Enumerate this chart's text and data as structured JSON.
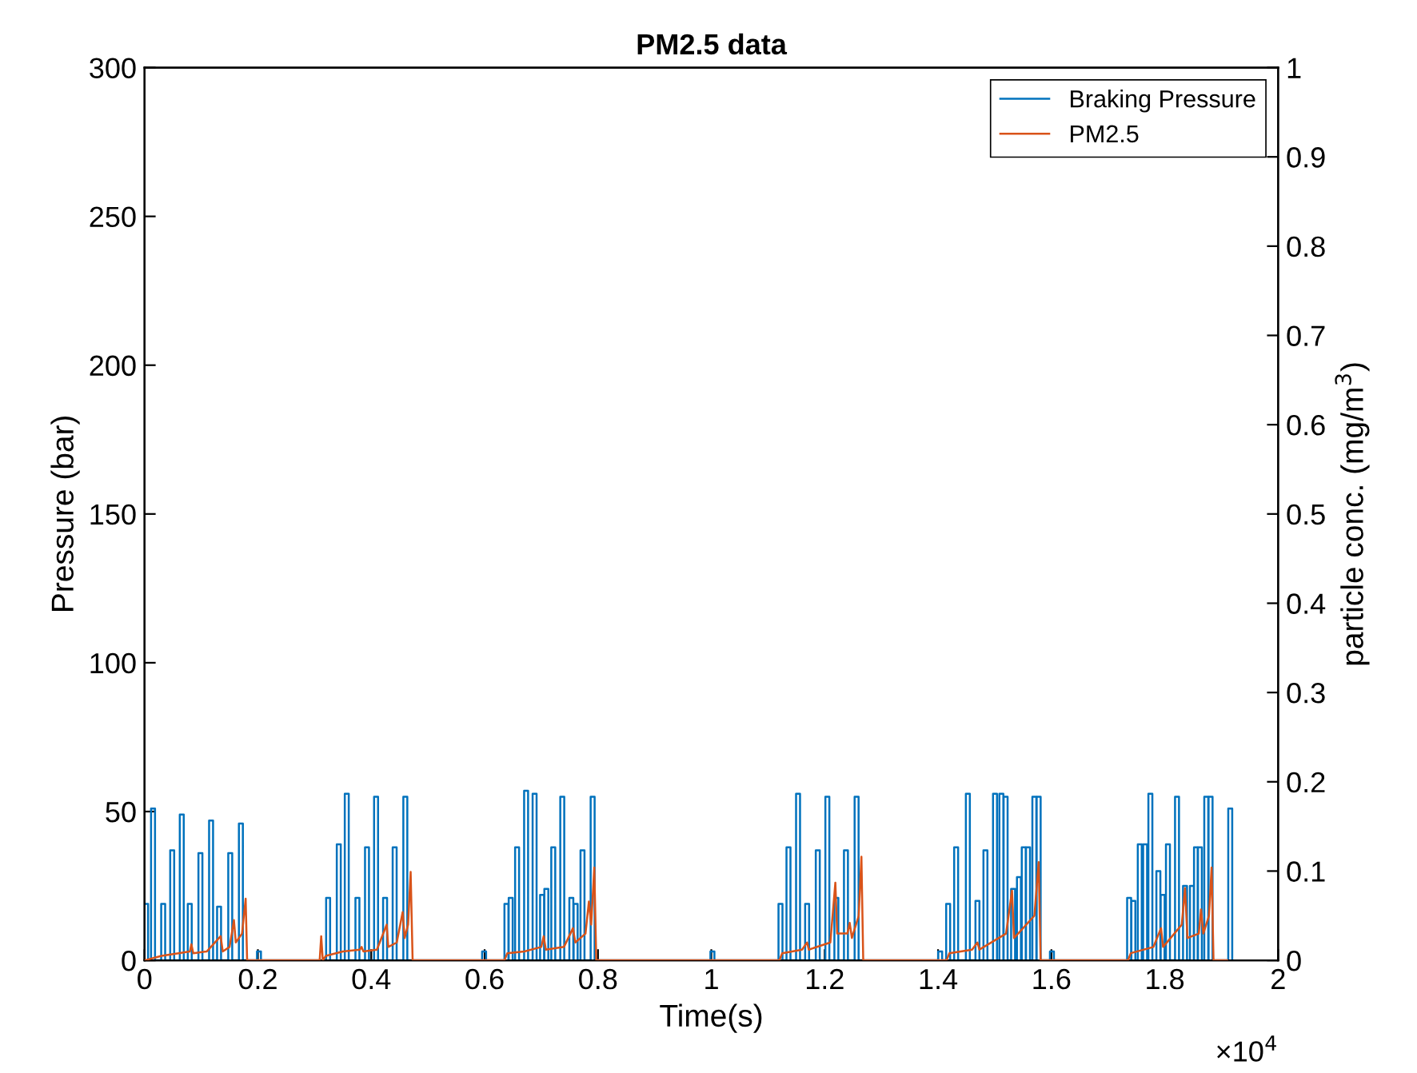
{
  "chart_data": {
    "type": "line",
    "title": "PM2.5 data",
    "xlabel": "Time(s)",
    "ylabel": "Pressure (bar)",
    "y2label": "particle conc. (mg/m$^{3}$)",
    "annotations": [
      "×10$^{4}$"
    ],
    "xlim": [
      0,
      2
    ],
    "xticks": [
      0,
      0.2,
      0.4,
      0.6,
      0.8,
      1,
      1.2,
      1.4,
      1.6,
      1.8,
      2
    ],
    "ylim": [
      0,
      300
    ],
    "yticks": [
      0,
      50,
      100,
      150,
      200,
      250,
      300
    ],
    "y2lim": [
      0,
      1
    ],
    "y2ticks": [
      0,
      0.1,
      0.2,
      0.3,
      0.4,
      0.5,
      0.6,
      0.7,
      0.8,
      0.9,
      1
    ],
    "grid": false,
    "legend": "top right",
    "marker": "none",
    "line_style": "solid",
    "series": [
      {
        "name": "Braking Pressure",
        "color": "#0072bd",
        "axis": "y",
        "x": [
          0,
          0.0063,
          0.0063,
          0.0115,
          0.0115,
          0.0185,
          0.0185,
          0.0294,
          0.0294,
          0.0364,
          0.0364,
          0.0453,
          0.0453,
          0.0523,
          0.0523,
          0.0622,
          0.0622,
          0.0692,
          0.0692,
          0.0763,
          0.0763,
          0.0833,
          0.0833,
          0.0951,
          0.0951,
          0.1021,
          0.1021,
          0.1139,
          0.1139,
          0.1209,
          0.1209,
          0.128,
          0.128,
          0.135,
          0.135,
          0.1477,
          0.1477,
          0.1547,
          0.1547,
          0.1665,
          0.1665,
          0.1735,
          0.1735,
          0.1984,
          0.1984,
          0.2054,
          0.2054,
          0.3204,
          0.3204,
          0.3274,
          0.3274,
          0.3392,
          0.3392,
          0.3462,
          0.3462,
          0.3533,
          0.3533,
          0.3603,
          0.3603,
          0.3721,
          0.3721,
          0.3791,
          0.3791,
          0.389,
          0.389,
          0.396,
          0.396,
          0.405,
          0.405,
          0.412,
          0.412,
          0.4209,
          0.4209,
          0.4279,
          0.4279,
          0.4378,
          0.4378,
          0.4448,
          0.4448,
          0.4566,
          0.4566,
          0.4636,
          0.4636,
          0.5956,
          0.5956,
          0.6026,
          0.6026,
          0.635,
          0.635,
          0.642,
          0.642,
          0.6425,
          0.6425,
          0.6495,
          0.6495,
          0.6538,
          0.6538,
          0.6608,
          0.6608,
          0.6697,
          0.6697,
          0.6767,
          0.6767,
          0.6847,
          0.6847,
          0.6917,
          0.6917,
          0.6979,
          0.6979,
          0.7049,
          0.7049,
          0.7054,
          0.7054,
          0.7124,
          0.7124,
          0.7176,
          0.7176,
          0.7246,
          0.7246,
          0.7335,
          0.7335,
          0.7405,
          0.7405,
          0.7495,
          0.7495,
          0.7565,
          0.7565,
          0.7571,
          0.7571,
          0.7641,
          0.7641,
          0.7692,
          0.7692,
          0.7762,
          0.7762,
          0.7871,
          0.7871,
          0.7941,
          0.7941,
          0.9984,
          0.9984,
          1.0054,
          1.0054,
          1.1185,
          1.1185,
          1.1255,
          1.1255,
          1.1326,
          1.1326,
          1.1396,
          1.1396,
          1.1495,
          1.1495,
          1.1565,
          1.1565,
          1.1655,
          1.1655,
          1.1725,
          1.1725,
          1.1843,
          1.1843,
          1.1913,
          1.1913,
          1.2012,
          1.2012,
          1.2082,
          1.2082,
          1.2171,
          1.2171,
          1.2241,
          1.2241,
          1.234,
          1.234,
          1.241,
          1.241,
          1.2528,
          1.2528,
          1.2598,
          1.2598,
          1.4002,
          1.4002,
          1.4072,
          1.4072,
          1.4143,
          1.4143,
          1.4213,
          1.4213,
          1.4284,
          1.4284,
          1.4354,
          1.4354,
          1.4491,
          1.4491,
          1.4561,
          1.4561,
          1.466,
          1.466,
          1.473,
          1.473,
          1.4801,
          1.4801,
          1.4871,
          1.4871,
          1.497,
          1.497,
          1.504,
          1.504,
          1.5082,
          1.5082,
          1.5152,
          1.5152,
          1.5157,
          1.5157,
          1.5227,
          1.5227,
          1.5289,
          1.5289,
          1.5359,
          1.5359,
          1.5392,
          1.5392,
          1.5462,
          1.5462,
          1.5477,
          1.5477,
          1.5547,
          1.5547,
          1.5552,
          1.5552,
          1.5622,
          1.5622,
          1.5664,
          1.5664,
          1.5734,
          1.5734,
          1.574,
          1.574,
          1.581,
          1.581,
          1.5974,
          1.5974,
          1.6044,
          1.6044,
          1.7336,
          1.7336,
          1.7406,
          1.7406,
          1.7411,
          1.7411,
          1.7481,
          1.7481,
          1.7524,
          1.7524,
          1.7594,
          1.7594,
          1.7618,
          1.7618,
          1.7688,
          1.7688,
          1.7711,
          1.7711,
          1.7781,
          1.7781,
          1.7852,
          1.7852,
          1.7922,
          1.7922,
          1.7928,
          1.7928,
          1.7998,
          1.7998,
          1.8021,
          1.8021,
          1.8091,
          1.8091,
          1.8181,
          1.8181,
          1.8251,
          1.8251,
          1.8322,
          1.8322,
          1.8392,
          1.8392,
          1.8444,
          1.8444,
          1.8512,
          1.8512,
          1.8516,
          1.8516,
          1.858,
          1.858,
          1.8586,
          1.8586,
          1.8654,
          1.8654,
          1.8697,
          1.8697,
          1.8767,
          1.8767,
          1.8773,
          1.8773,
          1.8843,
          1.8843,
          1.912,
          1.912,
          1.919,
          1.919
        ],
        "values": [
          19,
          19,
          0,
          0,
          51,
          51,
          0,
          0,
          19,
          19,
          0,
          0,
          37,
          37,
          0,
          0,
          49,
          49,
          0,
          0,
          19,
          19,
          0,
          0,
          36,
          36,
          0,
          0,
          47,
          47,
          0,
          0,
          18,
          18,
          0,
          0,
          36,
          36,
          0,
          0,
          46,
          46,
          0,
          0,
          3,
          3,
          0,
          0,
          21,
          21,
          0,
          0,
          39,
          39,
          0,
          0,
          56,
          56,
          0,
          0,
          21,
          21,
          0,
          0,
          38,
          38,
          0,
          0,
          55,
          55,
          0,
          0,
          21,
          21,
          0,
          0,
          38,
          38,
          0,
          0,
          55,
          55,
          0,
          0,
          3,
          3,
          0,
          0,
          19,
          19,
          0,
          0,
          21,
          21,
          0,
          0,
          38,
          38,
          0,
          0,
          57,
          57,
          0,
          0,
          56,
          56,
          0,
          0,
          22,
          22,
          0,
          0,
          24,
          24,
          0,
          0,
          38,
          38,
          0,
          0,
          55,
          55,
          0,
          0,
          21,
          21,
          0,
          0,
          19,
          19,
          0,
          0,
          37,
          37,
          0,
          0,
          55,
          55,
          0,
          0,
          3,
          3,
          0,
          0,
          19,
          19,
          0,
          0,
          38,
          38,
          0,
          0,
          56,
          56,
          0,
          0,
          19,
          19,
          0,
          0,
          37,
          37,
          0,
          0,
          55,
          55,
          0,
          0,
          21,
          21,
          0,
          0,
          37,
          37,
          0,
          0,
          55,
          55,
          0,
          0,
          3,
          3,
          0,
          0,
          19,
          19,
          0,
          0,
          38,
          38,
          0,
          0,
          56,
          56,
          0,
          0,
          20,
          20,
          0,
          0,
          37,
          37,
          0,
          0,
          56,
          56,
          0,
          0,
          56,
          56,
          0,
          0,
          55,
          55,
          0,
          0,
          24,
          24,
          0,
          0,
          28,
          28,
          0,
          0,
          38,
          38,
          0,
          0,
          38,
          38,
          0,
          0,
          55,
          55,
          0,
          0,
          55,
          55,
          0,
          0,
          3,
          3,
          0,
          0,
          21,
          21,
          0,
          0,
          20,
          20,
          0,
          0,
          39,
          39,
          0,
          0,
          39,
          39,
          0,
          0,
          56,
          56,
          0,
          0,
          30,
          30,
          0,
          0,
          22,
          22,
          0,
          0,
          39,
          39,
          0,
          0,
          55,
          55,
          0,
          0,
          25,
          25,
          0,
          0,
          25,
          25,
          0,
          0,
          38,
          38,
          0,
          0,
          38,
          38,
          0,
          0,
          55,
          55,
          0,
          0,
          55,
          55,
          0,
          0,
          51,
          51,
          0
        ]
      },
      {
        "name": "PM2.5",
        "color": "#d95319",
        "axis": "y2",
        "x": [
          0,
          0.03,
          0.06,
          0.08,
          0.0826,
          0.086,
          0.11,
          0.1343,
          0.138,
          0.15,
          0.1577,
          0.161,
          0.172,
          0.1784,
          0.181,
          0.309,
          0.3117,
          0.3145,
          0.32,
          0.35,
          0.38,
          0.383,
          0.386,
          0.41,
          0.4272,
          0.43,
          0.445,
          0.4554,
          0.459,
          0.465,
          0.4695,
          0.473,
          0.635,
          0.64,
          0.67,
          0.7,
          0.7042,
          0.708,
          0.74,
          0.7559,
          0.76,
          0.778,
          0.784,
          0.788,
          0.7935,
          0.797,
          1.12,
          1.125,
          1.16,
          1.169,
          1.172,
          1.21,
          1.2188,
          1.222,
          1.24,
          1.2441,
          1.248,
          1.26,
          1.2648,
          1.268,
          1.415,
          1.42,
          1.46,
          1.4695,
          1.473,
          1.52,
          1.5305,
          1.534,
          1.57,
          1.5775,
          1.581,
          1.735,
          1.74,
          1.78,
          1.7934,
          1.797,
          1.83,
          1.8357,
          1.84,
          1.86,
          1.8639,
          1.868,
          1.878,
          1.8826,
          1.886,
          1.91
        ],
        "values": [
          0,
          0.005,
          0.008,
          0.01,
          0.018,
          0.008,
          0.01,
          0.027,
          0.01,
          0.015,
          0.045,
          0.02,
          0.03,
          0.069,
          0,
          0,
          0.027,
          0,
          0.005,
          0.01,
          0.012,
          0.015,
          0.01,
          0.012,
          0.04,
          0.015,
          0.02,
          0.054,
          0.025,
          0.04,
          0.099,
          0,
          0,
          0.008,
          0.01,
          0.015,
          0.027,
          0.012,
          0.015,
          0.036,
          0.02,
          0.03,
          0.066,
          0.04,
          0.104,
          0,
          0,
          0.008,
          0.012,
          0.02,
          0.012,
          0.02,
          0.087,
          0.03,
          0.03,
          0.042,
          0.025,
          0.05,
          0.116,
          0,
          0,
          0.008,
          0.012,
          0.02,
          0.012,
          0.03,
          0.078,
          0.025,
          0.05,
          0.11,
          0,
          0,
          0.008,
          0.015,
          0.036,
          0.015,
          0.04,
          0.081,
          0.025,
          0.03,
          0.057,
          0.03,
          0.05,
          0.104,
          0,
          0
        ]
      }
    ]
  }
}
